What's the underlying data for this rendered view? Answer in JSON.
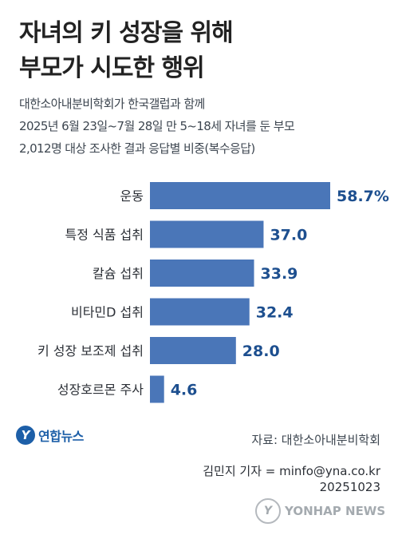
{
  "title": {
    "line1": "자녀의 키 성장을 위해",
    "line2": "부모가 시도한 행위"
  },
  "subtitle": {
    "line1": "대한소아내분비학회가 한국갤럽과 함께",
    "line2": "2025년 6월 23일~7월 28일 만 5~18세 자녀를 둔 부모",
    "line3": "2,012명 대상 조사한 결과 응답별 비중(복수응답)"
  },
  "chart_data": {
    "type": "bar",
    "orientation": "horizontal",
    "categories": [
      "운동",
      "특정 식품 섭취",
      "칼슘 섭취",
      "비타민D 섭취",
      "키 성장 보조제 섭취",
      "성장호르몬 주사"
    ],
    "values": [
      58.7,
      37.0,
      33.9,
      32.4,
      28.0,
      4.6
    ],
    "value_labels": [
      "58.7%",
      "37.0",
      "33.9",
      "32.4",
      "28.0",
      "4.6"
    ],
    "unit": "%",
    "xlim": [
      0,
      58.7
    ],
    "bar_color": "#4a76b8",
    "value_color": "#1d4f8f",
    "grid": false,
    "legend": "none"
  },
  "logo": {
    "mark": "Y",
    "text": "연합뉴스"
  },
  "source": "자료: 대한소아내분비학회",
  "credit": {
    "line1": "김민지 기자 = minfo@yna.co.kr",
    "line2": "20251023"
  },
  "watermark": {
    "mark": "Y",
    "text": "YONHAP NEWS"
  }
}
